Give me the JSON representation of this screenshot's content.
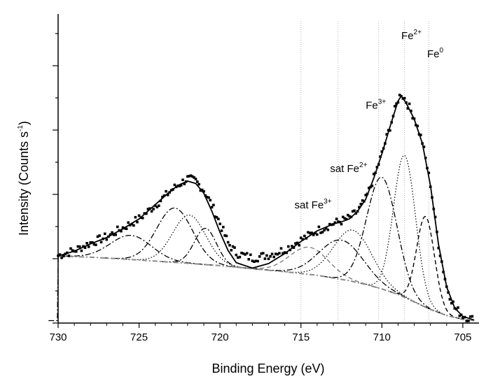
{
  "chart_data": {
    "type": "line",
    "title": "",
    "xlabel": "Binding Energy (eV)",
    "ylabel": "Intensity (Counts s",
    "ylabel_sup": "-1",
    "ylabel_close": ")",
    "xlim": [
      730,
      704
    ],
    "x_reversed": true,
    "xticks": [
      730,
      725,
      720,
      715,
      710,
      705
    ],
    "y_tick_labels": false,
    "ylim": [
      0,
      1
    ],
    "reference_lines_x": [
      715.0,
      712.7,
      710.2,
      708.6,
      707.1
    ],
    "annotations": [
      {
        "base": "Fe",
        "sup": "2+",
        "x": 708.8,
        "y": 0.94
      },
      {
        "base": "Fe",
        "sup": "0",
        "x": 707.2,
        "y": 0.88
      },
      {
        "base": "Fe",
        "sup": "3+",
        "x": 711.0,
        "y": 0.71
      },
      {
        "base": "sat Fe",
        "sup": "2+",
        "x": 713.2,
        "y": 0.5
      },
      {
        "base": "sat Fe",
        "sup": "3+",
        "x": 715.4,
        "y": 0.38
      }
    ],
    "series": [
      {
        "style": "markers",
        "points": [
          [
            730,
            0.223
          ],
          [
            729,
            0.24
          ],
          [
            728,
            0.265
          ],
          [
            727,
            0.285
          ],
          [
            726,
            0.315
          ],
          [
            725,
            0.345
          ],
          [
            724,
            0.39
          ],
          [
            723,
            0.44
          ],
          [
            722.5,
            0.46
          ],
          [
            722,
            0.478
          ],
          [
            721.5,
            0.47
          ],
          [
            721,
            0.44
          ],
          [
            720.5,
            0.39
          ],
          [
            720,
            0.33
          ],
          [
            719.5,
            0.265
          ],
          [
            719,
            0.232
          ],
          [
            718,
            0.215
          ],
          [
            717,
            0.225
          ],
          [
            716,
            0.243
          ],
          [
            715,
            0.275
          ],
          [
            714,
            0.305
          ],
          [
            713,
            0.33
          ],
          [
            712.5,
            0.338
          ],
          [
            712,
            0.348
          ],
          [
            711.5,
            0.37
          ],
          [
            711,
            0.41
          ],
          [
            710.5,
            0.48
          ],
          [
            710,
            0.56
          ],
          [
            709.5,
            0.65
          ],
          [
            709,
            0.74
          ],
          [
            708.8,
            0.76
          ],
          [
            708.5,
            0.735
          ],
          [
            708,
            0.68
          ],
          [
            707.5,
            0.6
          ],
          [
            707,
            0.46
          ],
          [
            706.5,
            0.26
          ],
          [
            706,
            0.12
          ],
          [
            705.5,
            0.05
          ],
          [
            705,
            0.025
          ],
          [
            704.3,
            0.01
          ]
        ]
      },
      {
        "style": "solid",
        "points": [
          [
            730,
            0.222
          ],
          [
            729,
            0.238
          ],
          [
            728,
            0.262
          ],
          [
            727,
            0.283
          ],
          [
            726,
            0.312
          ],
          [
            725,
            0.345
          ],
          [
            724,
            0.392
          ],
          [
            723,
            0.44
          ],
          [
            722.5,
            0.458
          ],
          [
            722,
            0.47
          ],
          [
            721.5,
            0.462
          ],
          [
            721,
            0.43
          ],
          [
            720.5,
            0.37
          ],
          [
            720,
            0.3
          ],
          [
            719.5,
            0.24
          ],
          [
            719,
            0.2
          ],
          [
            718,
            0.182
          ],
          [
            717,
            0.197
          ],
          [
            716,
            0.23
          ],
          [
            715,
            0.27
          ],
          [
            714,
            0.305
          ],
          [
            713,
            0.328
          ],
          [
            712.5,
            0.335
          ],
          [
            712,
            0.345
          ],
          [
            711.5,
            0.37
          ],
          [
            711,
            0.41
          ],
          [
            710.5,
            0.48
          ],
          [
            710,
            0.56
          ],
          [
            709.5,
            0.65
          ],
          [
            709,
            0.735
          ],
          [
            708.8,
            0.752
          ],
          [
            708.5,
            0.728
          ],
          [
            708,
            0.675
          ],
          [
            707.5,
            0.595
          ],
          [
            707,
            0.455
          ],
          [
            706.5,
            0.26
          ],
          [
            706,
            0.12
          ],
          [
            705.5,
            0.05
          ],
          [
            705,
            0.022
          ],
          [
            704.3,
            0.01
          ]
        ]
      },
      {
        "style": "background",
        "points": [
          [
            730,
            0.222
          ],
          [
            728,
            0.218
          ],
          [
            726,
            0.212
          ],
          [
            724,
            0.205
          ],
          [
            722,
            0.198
          ],
          [
            720,
            0.19
          ],
          [
            718,
            0.18
          ],
          [
            716,
            0.17
          ],
          [
            714,
            0.158
          ],
          [
            712,
            0.14
          ],
          [
            711,
            0.128
          ],
          [
            710,
            0.113
          ],
          [
            709,
            0.095
          ],
          [
            708,
            0.07
          ],
          [
            707,
            0.045
          ],
          [
            706,
            0.025
          ],
          [
            705,
            0.012
          ],
          [
            704.3,
            0.008
          ]
        ]
      }
    ],
    "components": [
      {
        "style": "dashdot",
        "center": 725.5,
        "amplitude": 0.08,
        "fwhm": 3.0
      },
      {
        "style": "dashdot",
        "center": 722.8,
        "amplitude": 0.18,
        "fwhm": 2.6
      },
      {
        "style": "dotted",
        "center": 721.9,
        "amplitude": 0.16,
        "fwhm": 2.4
      },
      {
        "style": "dashdot",
        "center": 720.9,
        "amplitude": 0.12,
        "fwhm": 1.6
      },
      {
        "style": "dashed-gray",
        "center": 714.5,
        "amplitude": 0.09,
        "fwhm": 2.8
      },
      {
        "style": "dashdot",
        "center": 712.5,
        "amplitude": 0.13,
        "fwhm": 3.2
      },
      {
        "style": "dotted",
        "center": 711.8,
        "amplitude": 0.17,
        "fwhm": 2.8
      },
      {
        "style": "dashdot",
        "center": 710.0,
        "amplitude": 0.37,
        "fwhm": 2.2
      },
      {
        "style": "dotted",
        "center": 708.6,
        "amplitude": 0.47,
        "fwhm": 1.6
      },
      {
        "style": "dashed",
        "center": 707.3,
        "amplitude": 0.3,
        "fwhm": 1.3
      }
    ]
  }
}
